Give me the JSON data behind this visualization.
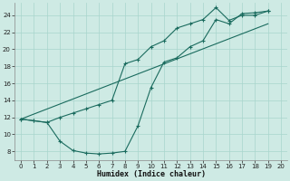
{
  "xlabel": "Humidex (Indice chaleur)",
  "xlim": [
    -0.5,
    20.5
  ],
  "ylim": [
    7.0,
    25.5
  ],
  "xticks": [
    0,
    1,
    2,
    3,
    4,
    5,
    6,
    7,
    8,
    9,
    10,
    11,
    12,
    13,
    14,
    15,
    16,
    17,
    18,
    19,
    20
  ],
  "yticks": [
    8,
    10,
    12,
    14,
    16,
    18,
    20,
    22,
    24
  ],
  "bg_color": "#ceeae4",
  "grid_color": "#a8d5cc",
  "line_color": "#1a6b5e",
  "line1_x": [
    0,
    1,
    2,
    3,
    4,
    5,
    6,
    7,
    8,
    9,
    10,
    11,
    12,
    13,
    14,
    15,
    16,
    17,
    18,
    19
  ],
  "line1_y": [
    11.8,
    11.6,
    11.4,
    12.0,
    12.5,
    13.0,
    13.5,
    14.0,
    18.3,
    18.8,
    20.3,
    21.0,
    22.5,
    23.0,
    23.5,
    24.9,
    23.4,
    24.0,
    24.0,
    24.5
  ],
  "line2_x": [
    0,
    1,
    2,
    3,
    4,
    5,
    6,
    7,
    8,
    9,
    10,
    11,
    12,
    13,
    14,
    15,
    16,
    17,
    18,
    19
  ],
  "line2_y": [
    11.8,
    11.6,
    11.4,
    9.2,
    8.1,
    7.8,
    7.7,
    7.8,
    8.0,
    11.0,
    15.5,
    18.5,
    19.0,
    20.3,
    21.0,
    23.5,
    23.0,
    24.2,
    24.3,
    24.5
  ],
  "line3_x": [
    0,
    19
  ],
  "line3_y": [
    11.8,
    23.0
  ]
}
